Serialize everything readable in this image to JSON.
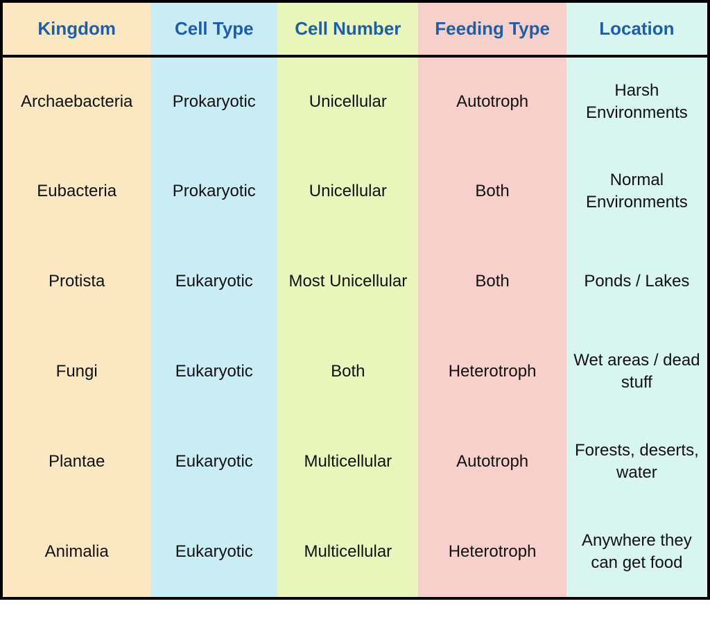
{
  "table": {
    "header_text_color": "#1e5fa3",
    "body_text_color": "#111111",
    "border_color": "#000000",
    "header_fontsize": 26,
    "body_fontsize": 24,
    "columns": [
      {
        "label": "Kingdom",
        "bg": "#fbe8c2",
        "width_pct": 21
      },
      {
        "label": "Cell Type",
        "bg": "#c9ecf5",
        "width_pct": 18
      },
      {
        "label": "Cell Number",
        "bg": "#e9f5bb",
        "width_pct": 20
      },
      {
        "label": "Feeding Type",
        "bg": "#f8d0cb",
        "width_pct": 21
      },
      {
        "label": "Location",
        "bg": "#d8f5ef",
        "width_pct": 20
      }
    ],
    "rows": [
      [
        "Archaebacteria",
        "Prokaryotic",
        "Unicellular",
        "Autotroph",
        "Harsh Environments"
      ],
      [
        "Eubacteria",
        "Prokaryotic",
        "Unicellular",
        "Both",
        "Normal Environments"
      ],
      [
        "Protista",
        "Eukaryotic",
        "Most Unicellular",
        "Both",
        "Ponds / Lakes"
      ],
      [
        "Fungi",
        "Eukaryotic",
        "Both",
        "Heterotroph",
        "Wet areas / dead stuff"
      ],
      [
        "Plantae",
        "Eukaryotic",
        "Multicellular",
        "Autotroph",
        "Forests, deserts, water"
      ],
      [
        "Animalia",
        "Eukaryotic",
        "Multicellular",
        "Heterotroph",
        "Anywhere they can get food"
      ]
    ]
  }
}
